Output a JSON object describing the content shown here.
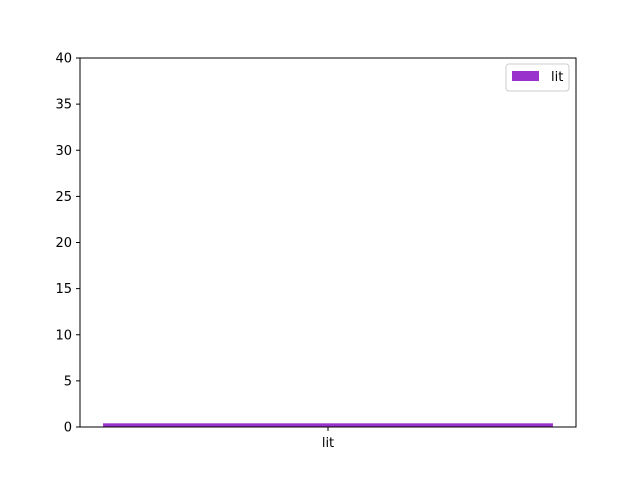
{
  "chart_data": {
    "type": "bar",
    "title": "",
    "xlabel": "",
    "ylabel": "",
    "categories": [
      "lit"
    ],
    "series": [
      {
        "name": "lit",
        "values": [
          0.4
        ],
        "color": "#9932cc"
      }
    ],
    "ylim": [
      0,
      40
    ],
    "yticks": [
      0,
      5,
      10,
      15,
      20,
      25,
      30,
      35,
      40
    ],
    "grid": false,
    "legend": {
      "position": "top-right",
      "entries": [
        "lit"
      ]
    }
  }
}
